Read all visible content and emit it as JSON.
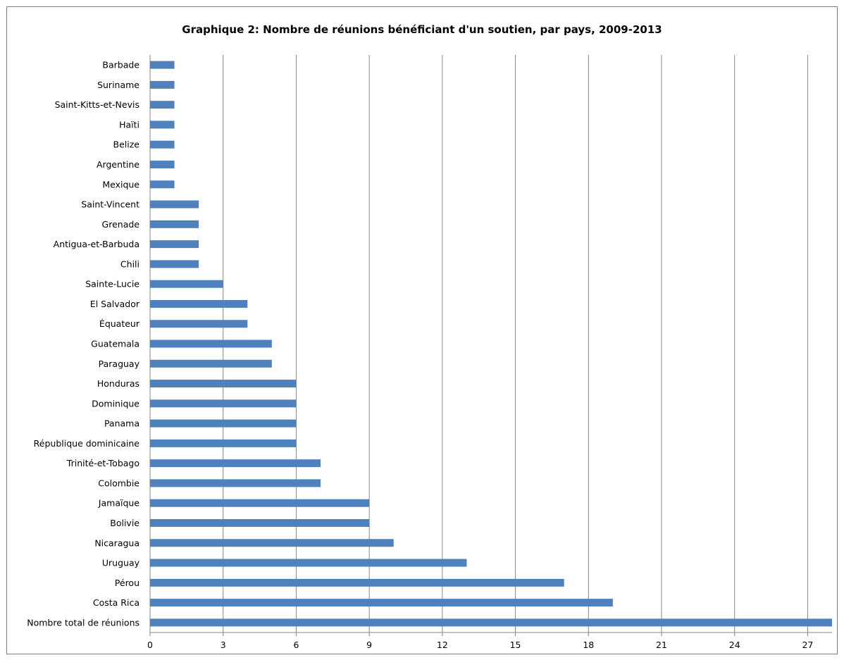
{
  "chart_data": {
    "type": "bar",
    "orientation": "horizontal",
    "title": "Graphique 2: Nombre de réunions bénéficiant d'un soutien, par pays, 2009-2013",
    "xlabel": "",
    "ylabel": "",
    "xlim": [
      0,
      28
    ],
    "ticks": [
      0,
      3,
      6,
      9,
      12,
      15,
      18,
      21,
      24,
      27
    ],
    "grid": "vertical",
    "legend": "none",
    "bar_color": "#4f81bd",
    "categories": [
      "Barbade",
      "Suriname",
      "Saint-Kitts-et-Nevis",
      "Haïti",
      "Belize",
      "Argentine",
      "Mexique",
      "Saint-Vincent",
      "Grenade",
      "Antigua-et-Barbuda",
      "Chili",
      "Sainte-Lucie",
      "El Salvador",
      "Équateur",
      "Guatemala",
      "Paraguay",
      "Honduras",
      "Dominique",
      "Panama",
      "République dominicaine",
      "Trinité-et-Tobago",
      "Colombie",
      "Jamaïque",
      "Bolivie",
      "Nicaragua",
      "Uruguay",
      "Pérou",
      "Costa Rica",
      "Nombre total de réunions"
    ],
    "values": [
      1,
      1,
      1,
      1,
      1,
      1,
      1,
      2,
      2,
      2,
      2,
      3,
      4,
      4,
      5,
      5,
      6,
      6,
      6,
      6,
      7,
      7,
      9,
      9,
      10,
      13,
      17,
      19,
      28
    ]
  }
}
